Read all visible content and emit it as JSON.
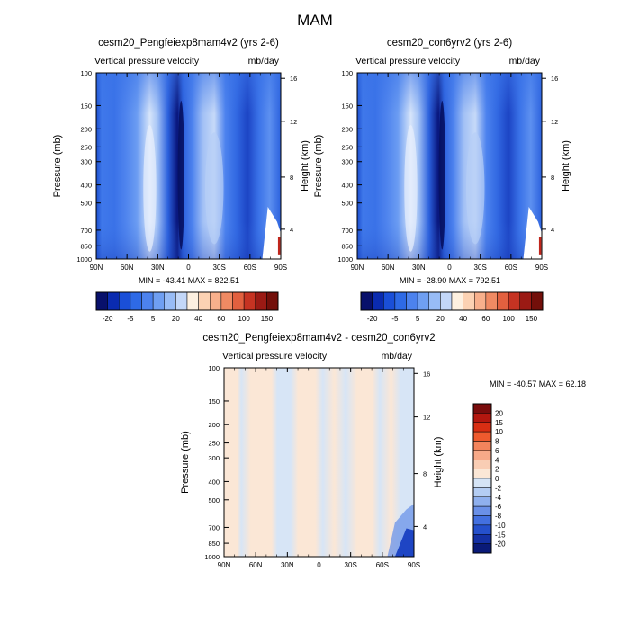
{
  "page_title": "MAM",
  "chart_data": [
    {
      "type": "heatmap",
      "title": "cesm20_Pengfeiexp8mam4v2 (yrs 2-6)",
      "left_label": "Vertical pressure velocity",
      "right_label": "mb/day",
      "ylabel": "Pressure (mb)",
      "ylabel_right": "Height (km)",
      "x_ticks": [
        "90N",
        "60N",
        "30N",
        "0",
        "30S",
        "60S",
        "90S"
      ],
      "y_ticks": [
        "100",
        "150",
        "200",
        "250",
        "300",
        "400",
        "500",
        "700",
        "850",
        "1000"
      ],
      "y_ticks_right": [
        "16",
        "12",
        "8",
        "4"
      ],
      "min_max": "MIN = -43.41   MAX = 822.51",
      "colorbar_labels": [
        "-20",
        "-5",
        "5",
        "20",
        "40",
        "60",
        "100",
        "150"
      ]
    },
    {
      "type": "heatmap",
      "title": "cesm20_con6yrv2 (yrs 2-6)",
      "left_label": "Vertical pressure velocity",
      "right_label": "mb/day",
      "ylabel": "Pressure (mb)",
      "ylabel_right": "Height (km)",
      "x_ticks": [
        "90N",
        "60N",
        "30N",
        "0",
        "30S",
        "60S",
        "90S"
      ],
      "y_ticks": [
        "100",
        "150",
        "200",
        "250",
        "300",
        "400",
        "500",
        "700",
        "850",
        "1000"
      ],
      "y_ticks_right": [
        "16",
        "12",
        "8",
        "4"
      ],
      "min_max": "MIN = -28.90   MAX = 792.51",
      "colorbar_labels": [
        "-20",
        "-5",
        "5",
        "20",
        "40",
        "60",
        "100",
        "150"
      ]
    },
    {
      "type": "heatmap",
      "title": "cesm20_Pengfeiexp8mam4v2 - cesm20_con6yrv2",
      "left_label": "Vertical pressure velocity",
      "right_label": "mb/day",
      "ylabel": "Pressure (mb)",
      "ylabel_right": "Height (km)",
      "x_ticks": [
        "90N",
        "60N",
        "30N",
        "0",
        "30S",
        "60S",
        "90S"
      ],
      "y_ticks": [
        "100",
        "150",
        "200",
        "250",
        "300",
        "400",
        "500",
        "700",
        "850",
        "1000"
      ],
      "y_ticks_right": [
        "16",
        "12",
        "8",
        "4"
      ],
      "min_max": "MIN = -40.57   MAX =  62.18",
      "colorbar_labels": [
        "20",
        "15",
        "10",
        "8",
        "6",
        "4",
        "2",
        "0",
        "-2",
        "-4",
        "-6",
        "-8",
        "-10",
        "-15",
        "-20"
      ]
    }
  ],
  "colors": {
    "abs_levels": [
      "#08106b",
      "#0a2bb0",
      "#1a4fd8",
      "#2e6ae6",
      "#4c82ee",
      "#6f9ff2",
      "#98bcf6",
      "#c3d7f8",
      "#fdf0e0",
      "#fcd2b3",
      "#f8b08c",
      "#f08a63",
      "#e2603f",
      "#c63322",
      "#9b1a14",
      "#730f0a"
    ],
    "diff_levels": [
      "#7a0c0c",
      "#b3170f",
      "#d82e13",
      "#ee5a2e",
      "#f3845c",
      "#f7a988",
      "#f9cdb4",
      "#fbe7d6",
      "#d5e4f6",
      "#b4cdf3",
      "#8fb0ee",
      "#6a90e8",
      "#4370e0",
      "#2550cc",
      "#1430a4",
      "#0a1a78"
    ]
  }
}
